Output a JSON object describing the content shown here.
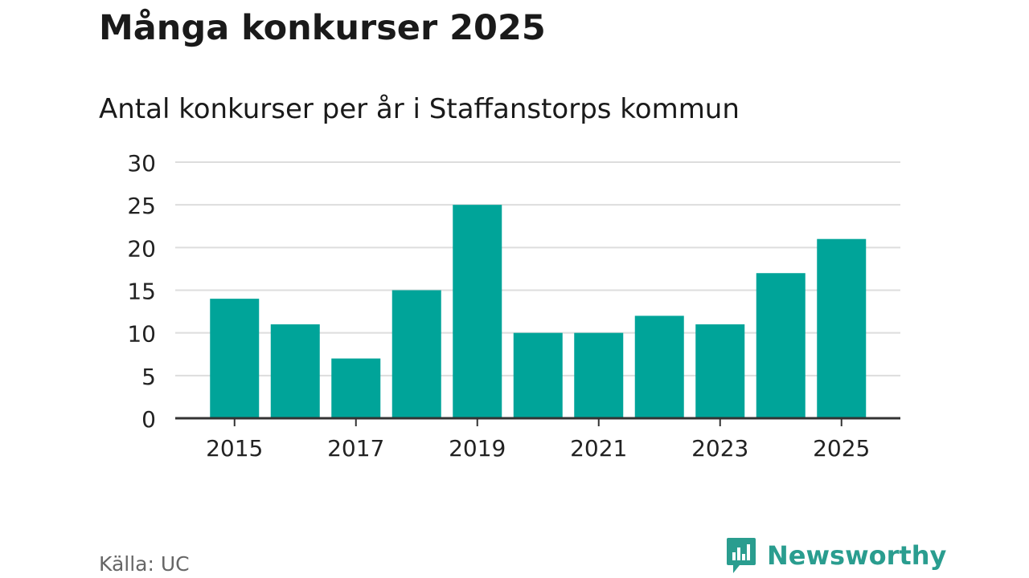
{
  "colors": {
    "bar": "#00a499",
    "grid": "#dddddd",
    "axis": "#333333",
    "brand": "#2a9d8f"
  },
  "footer": {
    "source": "Källa: UC",
    "brand_name": "Newsworthy",
    "brand_icon": "bar-chart-speech-icon"
  },
  "chart_data": {
    "type": "bar",
    "title": "Många konkurser 2025",
    "subtitle": "Antal konkurser per år i Staffanstorps kommun",
    "xlabel": "",
    "ylabel": "",
    "categories": [
      "2015",
      "2016",
      "2017",
      "2018",
      "2019",
      "2020",
      "2021",
      "2022",
      "2023",
      "2024",
      "2025"
    ],
    "values": [
      14,
      11,
      7,
      15,
      25,
      10,
      10,
      12,
      11,
      17,
      21
    ],
    "x_tick_labels": [
      "2015",
      "2017",
      "2019",
      "2021",
      "2023",
      "2025"
    ],
    "y_ticks": [
      0,
      5,
      10,
      15,
      20,
      25,
      30
    ],
    "ylim": [
      0,
      30
    ],
    "grid": true,
    "legend": "none"
  }
}
